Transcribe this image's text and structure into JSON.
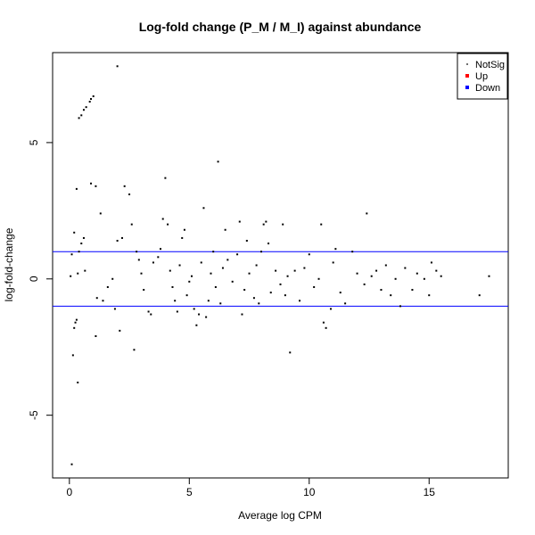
{
  "chart_data": {
    "type": "scatter",
    "title": "Log-fold change (P_M / M_I) against abundance",
    "xlabel": "Average log CPM",
    "ylabel": "log-fold-change",
    "xlim": [
      -0.7,
      18.3
    ],
    "ylim": [
      -7.3,
      8.3
    ],
    "x_ticks": [
      0,
      5,
      10,
      15
    ],
    "y_ticks": [
      -5,
      0,
      5
    ],
    "threshold_lines": [
      1,
      -1
    ],
    "threshold_color": "#0000ff",
    "grid": false,
    "legend_position": "top-right",
    "legend": [
      {
        "label": "NotSig",
        "color": "#000000"
      },
      {
        "label": "Up",
        "color": "#ff0000"
      },
      {
        "label": "Down",
        "color": "#0000ff"
      }
    ],
    "series": [
      {
        "name": "NotSig",
        "color": "#000000",
        "points": [
          [
            0.1,
            -6.8
          ],
          [
            0.15,
            -2.8
          ],
          [
            0.2,
            -1.8
          ],
          [
            0.35,
            -3.8
          ],
          [
            0.3,
            -1.5
          ],
          [
            0.25,
            -1.6
          ],
          [
            0.1,
            0.9
          ],
          [
            0.05,
            0.1
          ],
          [
            0.2,
            1.7
          ],
          [
            0.4,
            1.0
          ],
          [
            0.5,
            1.3
          ],
          [
            0.6,
            1.5
          ],
          [
            0.65,
            0.3
          ],
          [
            0.35,
            0.2
          ],
          [
            0.3,
            3.3
          ],
          [
            0.4,
            5.9
          ],
          [
            0.5,
            6.0
          ],
          [
            0.6,
            6.2
          ],
          [
            0.7,
            6.3
          ],
          [
            0.85,
            6.5
          ],
          [
            0.9,
            6.6
          ],
          [
            1.0,
            6.7
          ],
          [
            2.0,
            7.8
          ],
          [
            0.9,
            3.5
          ],
          [
            1.1,
            3.4
          ],
          [
            1.3,
            2.4
          ],
          [
            1.15,
            -0.7
          ],
          [
            1.4,
            -0.8
          ],
          [
            1.6,
            -0.3
          ],
          [
            1.8,
            0.0
          ],
          [
            1.1,
            -2.1
          ],
          [
            1.9,
            -1.1
          ],
          [
            2.1,
            -1.9
          ],
          [
            2.2,
            1.5
          ],
          [
            2.0,
            1.4
          ],
          [
            2.3,
            3.4
          ],
          [
            2.5,
            3.1
          ],
          [
            2.6,
            2.0
          ],
          [
            2.8,
            1.0
          ],
          [
            2.7,
            -2.6
          ],
          [
            2.9,
            0.7
          ],
          [
            3.0,
            0.2
          ],
          [
            3.1,
            -0.4
          ],
          [
            3.3,
            -1.2
          ],
          [
            3.4,
            -1.3
          ],
          [
            3.5,
            0.6
          ],
          [
            3.7,
            0.8
          ],
          [
            3.8,
            1.1
          ],
          [
            3.9,
            2.2
          ],
          [
            4.0,
            3.7
          ],
          [
            4.1,
            2.0
          ],
          [
            4.2,
            0.3
          ],
          [
            4.3,
            -0.3
          ],
          [
            4.4,
            -0.8
          ],
          [
            4.5,
            -1.2
          ],
          [
            4.6,
            0.5
          ],
          [
            4.7,
            1.5
          ],
          [
            4.8,
            1.8
          ],
          [
            4.9,
            -0.6
          ],
          [
            5.0,
            -0.1
          ],
          [
            5.1,
            0.1
          ],
          [
            5.2,
            -1.1
          ],
          [
            5.3,
            -1.7
          ],
          [
            5.4,
            -1.3
          ],
          [
            5.5,
            0.6
          ],
          [
            5.6,
            2.6
          ],
          [
            5.7,
            -1.4
          ],
          [
            5.8,
            -0.8
          ],
          [
            5.9,
            0.2
          ],
          [
            6.0,
            1.0
          ],
          [
            6.1,
            -0.3
          ],
          [
            6.2,
            4.3
          ],
          [
            6.3,
            -0.9
          ],
          [
            6.4,
            0.4
          ],
          [
            6.5,
            1.8
          ],
          [
            6.6,
            0.7
          ],
          [
            6.8,
            -0.1
          ],
          [
            7.0,
            0.9
          ],
          [
            7.1,
            2.1
          ],
          [
            7.2,
            -1.3
          ],
          [
            7.3,
            -0.4
          ],
          [
            7.4,
            1.4
          ],
          [
            7.5,
            0.2
          ],
          [
            7.7,
            -0.7
          ],
          [
            7.8,
            0.5
          ],
          [
            7.9,
            -0.9
          ],
          [
            8.0,
            1.0
          ],
          [
            8.1,
            2.0
          ],
          [
            8.2,
            2.1
          ],
          [
            8.3,
            1.3
          ],
          [
            8.4,
            -0.5
          ],
          [
            8.6,
            0.3
          ],
          [
            8.8,
            -0.2
          ],
          [
            8.9,
            2.0
          ],
          [
            9.0,
            -0.6
          ],
          [
            9.1,
            0.1
          ],
          [
            9.2,
            -2.7
          ],
          [
            9.4,
            0.3
          ],
          [
            9.6,
            -0.8
          ],
          [
            9.8,
            0.4
          ],
          [
            10.0,
            0.9
          ],
          [
            10.2,
            -0.3
          ],
          [
            10.4,
            0.0
          ],
          [
            10.5,
            2.0
          ],
          [
            10.6,
            -1.6
          ],
          [
            10.7,
            -1.8
          ],
          [
            10.9,
            -1.1
          ],
          [
            11.0,
            0.6
          ],
          [
            11.1,
            1.1
          ],
          [
            11.3,
            -0.5
          ],
          [
            11.5,
            -0.9
          ],
          [
            11.8,
            1.0
          ],
          [
            12.0,
            0.2
          ],
          [
            12.3,
            -0.2
          ],
          [
            12.4,
            2.4
          ],
          [
            12.6,
            0.1
          ],
          [
            12.8,
            0.3
          ],
          [
            13.0,
            -0.4
          ],
          [
            13.2,
            0.5
          ],
          [
            13.4,
            -0.6
          ],
          [
            13.6,
            0.0
          ],
          [
            13.8,
            -1.0
          ],
          [
            14.0,
            0.4
          ],
          [
            14.3,
            -0.4
          ],
          [
            14.5,
            0.2
          ],
          [
            14.8,
            0.0
          ],
          [
            15.0,
            -0.6
          ],
          [
            15.1,
            0.6
          ],
          [
            15.3,
            0.3
          ],
          [
            15.5,
            0.1
          ],
          [
            17.1,
            -0.6
          ],
          [
            17.5,
            0.1
          ]
        ]
      }
    ]
  }
}
